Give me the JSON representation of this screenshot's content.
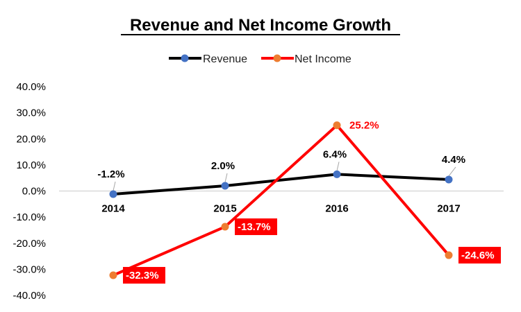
{
  "chart_data": {
    "type": "line",
    "title": "Revenue and Net Income Growth",
    "categories": [
      "2014",
      "2015",
      "2016",
      "2017"
    ],
    "ylim": [
      -40,
      40
    ],
    "yticks": [
      "40.0%",
      "30.0%",
      "20.0%",
      "10.0%",
      "0.0%",
      "-10.0%",
      "-20.0%",
      "-30.0%",
      "-40.0%"
    ],
    "ytick_values": [
      40,
      30,
      20,
      10,
      0,
      -10,
      -20,
      -30,
      -40
    ],
    "grid": false,
    "legend_position": "top",
    "series": [
      {
        "name": "Revenue",
        "values": [
          -1.2,
          2.0,
          6.4,
          4.4
        ],
        "labels": [
          "-1.2%",
          "2.0%",
          "6.4%",
          "4.4%"
        ],
        "line_color": "#000000",
        "marker_color": "#4472C4"
      },
      {
        "name": "Net Income",
        "values": [
          -32.3,
          -13.7,
          25.2,
          -24.6
        ],
        "labels": [
          "-32.3%",
          "-13.7%",
          "25.2%",
          "-24.6%"
        ],
        "line_color": "#FF0000",
        "marker_color": "#ED7D31"
      }
    ]
  }
}
